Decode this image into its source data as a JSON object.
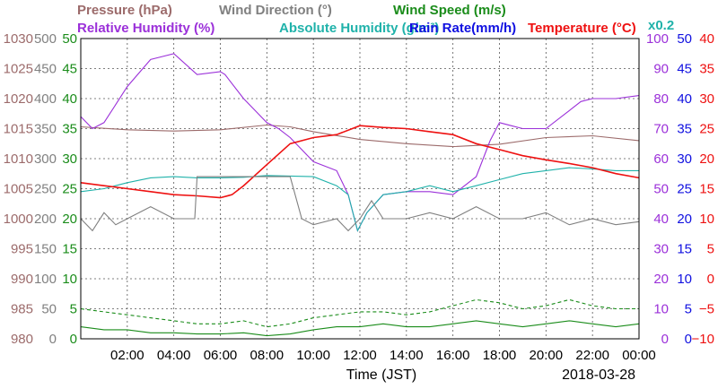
{
  "chart_data": {
    "type": "line",
    "date": "2018-03-28",
    "xlabel": "Time (JST)",
    "x_ticks": [
      "02:00",
      "04:00",
      "06:00",
      "08:00",
      "10:00",
      "12:00",
      "14:00",
      "16:00",
      "18:00",
      "20:00",
      "22:00",
      "00:00"
    ],
    "grid": true,
    "legend": "top",
    "multiplier_note": "x0.2",
    "axes": [
      {
        "id": "pressure",
        "side": "left",
        "color": "#9c6b6b",
        "range": [
          980,
          1030
        ],
        "ticks": [
          980,
          985,
          990,
          995,
          1000,
          1005,
          1010,
          1015,
          1020,
          1025,
          1030
        ]
      },
      {
        "id": "wind_direction",
        "side": "left",
        "color": "#808080",
        "range": [
          0,
          500
        ],
        "ticks": [
          0,
          50,
          100,
          150,
          200,
          250,
          300,
          350,
          400,
          450,
          500
        ]
      },
      {
        "id": "wind_speed",
        "side": "left",
        "color": "#1a8c1a",
        "range": [
          0,
          50
        ],
        "ticks": [
          0,
          5,
          10,
          15,
          20,
          25,
          30,
          35,
          40,
          45,
          50
        ]
      },
      {
        "id": "relative_humidity",
        "side": "right",
        "color": "#9b30d9",
        "range": [
          0,
          100
        ],
        "ticks": [
          0,
          10,
          20,
          30,
          40,
          50,
          60,
          70,
          80,
          90,
          100
        ]
      },
      {
        "id": "rain_rate",
        "side": "right",
        "color": "#1010e0",
        "range": [
          0,
          50
        ],
        "ticks": [
          0,
          5,
          10,
          15,
          20,
          25,
          30,
          35,
          40,
          45,
          50
        ]
      },
      {
        "id": "temperature",
        "side": "right",
        "color": "#ee1111",
        "range": [
          -10,
          40
        ],
        "ticks": [
          "-10",
          "-5",
          "0",
          "5",
          "10",
          "15",
          "20",
          "25",
          "30",
          "35",
          "40"
        ]
      }
    ],
    "series": [
      {
        "name": "Pressure (hPa)",
        "color": "#9c6b6b",
        "axis": "pressure",
        "style": "solid",
        "x": [
          0,
          2,
          4,
          6,
          8,
          9,
          10,
          12,
          14,
          16,
          18,
          20,
          22,
          24
        ],
        "y": [
          1015.3,
          1014.8,
          1014.6,
          1014.8,
          1015.6,
          1015.3,
          1014.5,
          1013.2,
          1012.5,
          1012.0,
          1012.4,
          1013.5,
          1013.8,
          1013.0
        ]
      },
      {
        "name": "Relative Humidity (%)",
        "color": "#9b30d9",
        "axis": "relative_humidity",
        "style": "solid",
        "x": [
          0,
          0.5,
          1,
          1.5,
          2,
          3,
          3.5,
          4,
          5,
          6,
          6.2,
          7,
          8,
          8.5,
          9,
          10,
          11,
          11.5,
          11.9,
          12.3,
          13,
          14,
          15,
          16,
          17,
          17.6,
          18,
          18.5,
          19,
          20,
          21,
          21.5,
          22,
          23,
          24
        ],
        "y": [
          74,
          70,
          72,
          78,
          84,
          93,
          94,
          95,
          88,
          89,
          88,
          80,
          72,
          70,
          67,
          59,
          56,
          48,
          36,
          42,
          48,
          49,
          49,
          48,
          54,
          66,
          72,
          71,
          70,
          70,
          76,
          79,
          80,
          80,
          81
        ]
      },
      {
        "name": "Absolute Humidity (g/m3)",
        "color": "#20b2aa",
        "axis": "wind_speed",
        "style": "solid",
        "x": [
          0,
          1,
          2,
          3,
          4,
          5,
          6,
          7,
          8,
          9,
          10,
          11,
          11.5,
          11.9,
          12.3,
          13,
          14,
          15,
          16,
          17,
          18,
          19,
          20,
          21,
          22,
          23,
          24
        ],
        "y": [
          24.5,
          25,
          26,
          26.8,
          27,
          26.8,
          26.8,
          26.9,
          27.2,
          27.1,
          27,
          25.5,
          24,
          18,
          21,
          24,
          24.5,
          25.5,
          24.5,
          25.5,
          26.5,
          27.5,
          28,
          28.5,
          28.3,
          28,
          28
        ]
      },
      {
        "name": "Temperature (°C)",
        "color": "#ee1111",
        "axis": "temperature",
        "style": "solid",
        "x": [
          0,
          1,
          2,
          3,
          4,
          5,
          6,
          6.5,
          7,
          8,
          9,
          10,
          11,
          12,
          13,
          14,
          15,
          16,
          17,
          18,
          19,
          20,
          21,
          22,
          23,
          24
        ],
        "y": [
          16,
          15.5,
          15,
          14.5,
          14,
          13.8,
          13.5,
          14,
          15.5,
          19,
          22.5,
          23.5,
          24,
          25.5,
          25.2,
          25,
          24.5,
          24,
          22.5,
          21.5,
          20.5,
          19.8,
          19.2,
          18.5,
          17.5,
          16.8
        ]
      },
      {
        "name": "Wind Direction (°)",
        "color": "#808080",
        "axis": "wind_direction",
        "style": "solid",
        "x": [
          0,
          0.5,
          1,
          1.5,
          2,
          3,
          4,
          4.9,
          5,
          6,
          7,
          8,
          9,
          9.5,
          10,
          11,
          11.5,
          12,
          12.5,
          13,
          14,
          15,
          16,
          17,
          18,
          19,
          20,
          21,
          22,
          23,
          24
        ],
        "y": [
          200,
          180,
          210,
          190,
          200,
          220,
          200,
          200,
          270,
          270,
          270,
          270,
          270,
          200,
          190,
          200,
          180,
          200,
          230,
          200,
          200,
          210,
          200,
          220,
          200,
          200,
          210,
          190,
          200,
          190,
          195
        ]
      },
      {
        "name": "Wind Speed (m/s)",
        "color": "#1a8c1a",
        "axis": "wind_speed",
        "style": "dashed",
        "x": [
          0,
          1,
          2,
          3,
          4,
          5,
          6,
          7,
          8,
          9,
          10,
          11,
          12,
          13,
          14,
          15,
          16,
          17,
          18,
          19,
          20,
          21,
          22,
          23,
          24
        ],
        "y": [
          5,
          4.5,
          4,
          3.5,
          3,
          2.5,
          2.5,
          3,
          2,
          2.5,
          3.5,
          4,
          4.5,
          4.5,
          4,
          4.5,
          5.5,
          6.5,
          6,
          5,
          5.5,
          6.5,
          5.5,
          5,
          5
        ]
      },
      {
        "name": "Wind Speed (m/s)",
        "color": "#1a8c1a",
        "axis": "wind_speed",
        "style": "solid",
        "x": [
          0,
          1,
          2,
          3,
          4,
          5,
          6,
          7,
          8,
          9,
          10,
          11,
          12,
          13,
          14,
          15,
          16,
          17,
          18,
          19,
          20,
          21,
          22,
          23,
          24
        ],
        "y": [
          2,
          1.5,
          1.5,
          1,
          1,
          0.8,
          0.8,
          1,
          0.5,
          0.8,
          1.5,
          2,
          2,
          2.5,
          2,
          2,
          2.5,
          3,
          2.5,
          2,
          2.5,
          3,
          2.5,
          2,
          2.5
        ]
      },
      {
        "name": "Rain Rate(mm/h)",
        "color": "#1010e0",
        "axis": "rain_rate",
        "style": "solid",
        "x": [
          0,
          24
        ],
        "y": [
          0,
          0
        ]
      }
    ],
    "legend_entries": [
      {
        "label": "Pressure (hPa)",
        "color": "#9c6b6b"
      },
      {
        "label": "Wind Direction (°)",
        "color": "#808080"
      },
      {
        "label": "Wind Speed (m/s)",
        "color": "#1a8c1a"
      },
      {
        "label": "Relative Humidity (%)",
        "color": "#9b30d9"
      },
      {
        "label": "Absolute Humidity (g/m³)",
        "color": "#20b2aa"
      },
      {
        "label": "Rain Rate(mm/h)",
        "color": "#1010e0"
      },
      {
        "label": "Temperature (°C)",
        "color": "#ee1111"
      }
    ]
  }
}
